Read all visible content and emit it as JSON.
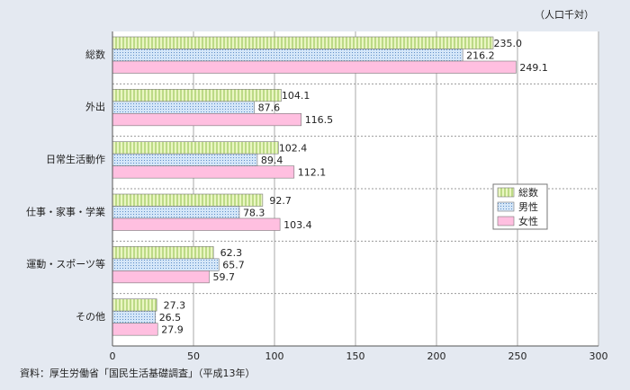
{
  "chart_data": {
    "type": "hbar",
    "unit": "（人口千対）",
    "source": "資料：厚生労働省「国民生活基礎調査」（平成13年）",
    "categories": [
      "総数",
      "外出",
      "日常生活動作",
      "仕事・家事・学業",
      "運動・スポーツ等",
      "その他"
    ],
    "series": [
      {
        "name": "総数",
        "color": "#eaf6c2",
        "values": [
          235.0,
          104.1,
          102.4,
          92.7,
          62.3,
          27.3
        ],
        "value_labels": [
          "235.0",
          "104.1",
          "102.4",
          "92.7",
          "62.3",
          "27.3"
        ]
      },
      {
        "name": "男性",
        "color": "#d4e6f8",
        "values": [
          216.2,
          87.6,
          89.4,
          78.3,
          65.7,
          26.5
        ],
        "value_labels": [
          "216.2",
          "87.6",
          "89.4",
          "78.3",
          "65.7",
          "26.5"
        ]
      },
      {
        "name": "女性",
        "color": "#ffbfe0",
        "values": [
          249.1,
          116.5,
          112.1,
          103.4,
          59.7,
          27.9
        ],
        "value_labels": [
          "249.1",
          "116.5",
          "112.1",
          "103.4",
          "59.7",
          "27.9"
        ]
      }
    ],
    "xlim": [
      0,
      300
    ],
    "xticks": [
      0,
      50,
      100,
      150,
      200,
      250,
      300
    ],
    "grid": true
  }
}
